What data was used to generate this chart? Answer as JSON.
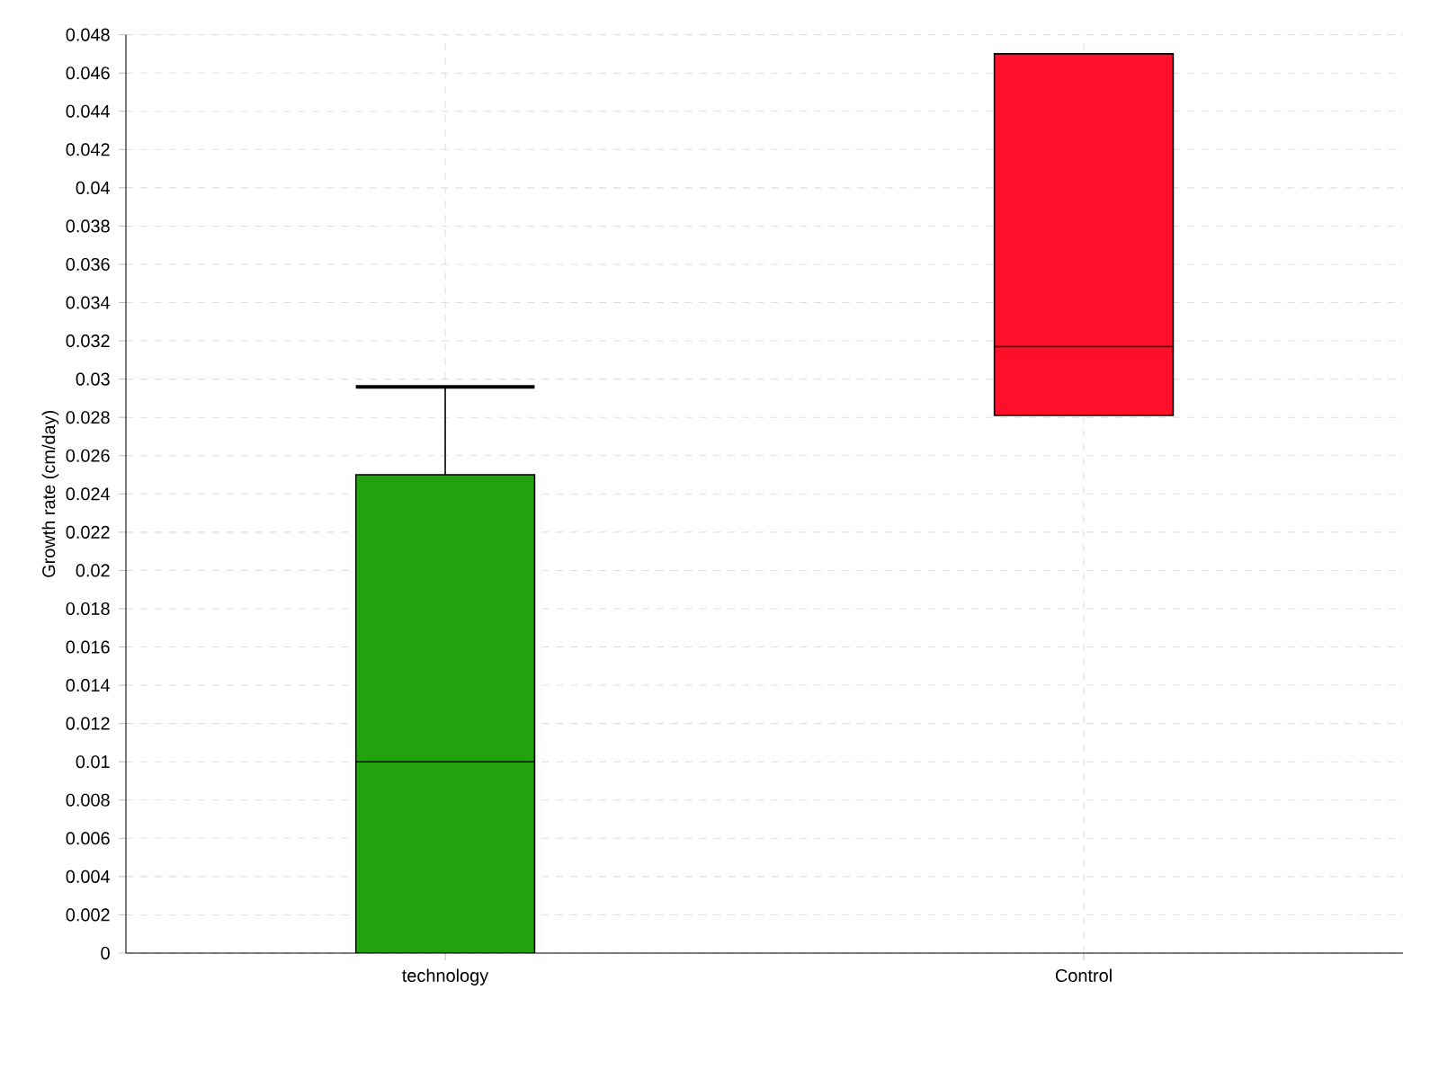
{
  "chart_data": {
    "type": "box",
    "ylabel": "Growth rate (cm/day)",
    "categories": [
      "technology",
      "Control"
    ],
    "boxes": [
      {
        "low": 0,
        "q1": 0,
        "median": 0.01,
        "q3": 0.025,
        "high": 0.0296
      },
      {
        "low": 0.0281,
        "q1": 0.0281,
        "median": 0.0317,
        "q3": 0.047,
        "high": 0.047
      }
    ],
    "colors": [
      "#22a30e",
      "#ff0f2a"
    ],
    "ylim": [
      0,
      0.048
    ],
    "yticks": [
      0,
      0.002,
      0.004,
      0.006,
      0.008,
      0.01,
      0.012,
      0.014,
      0.016,
      0.018,
      0.02,
      0.022,
      0.024,
      0.026,
      0.028,
      0.03,
      0.032,
      0.034,
      0.036,
      0.038,
      0.04,
      0.042,
      0.044,
      0.046,
      0.048
    ],
    "grid": true
  }
}
